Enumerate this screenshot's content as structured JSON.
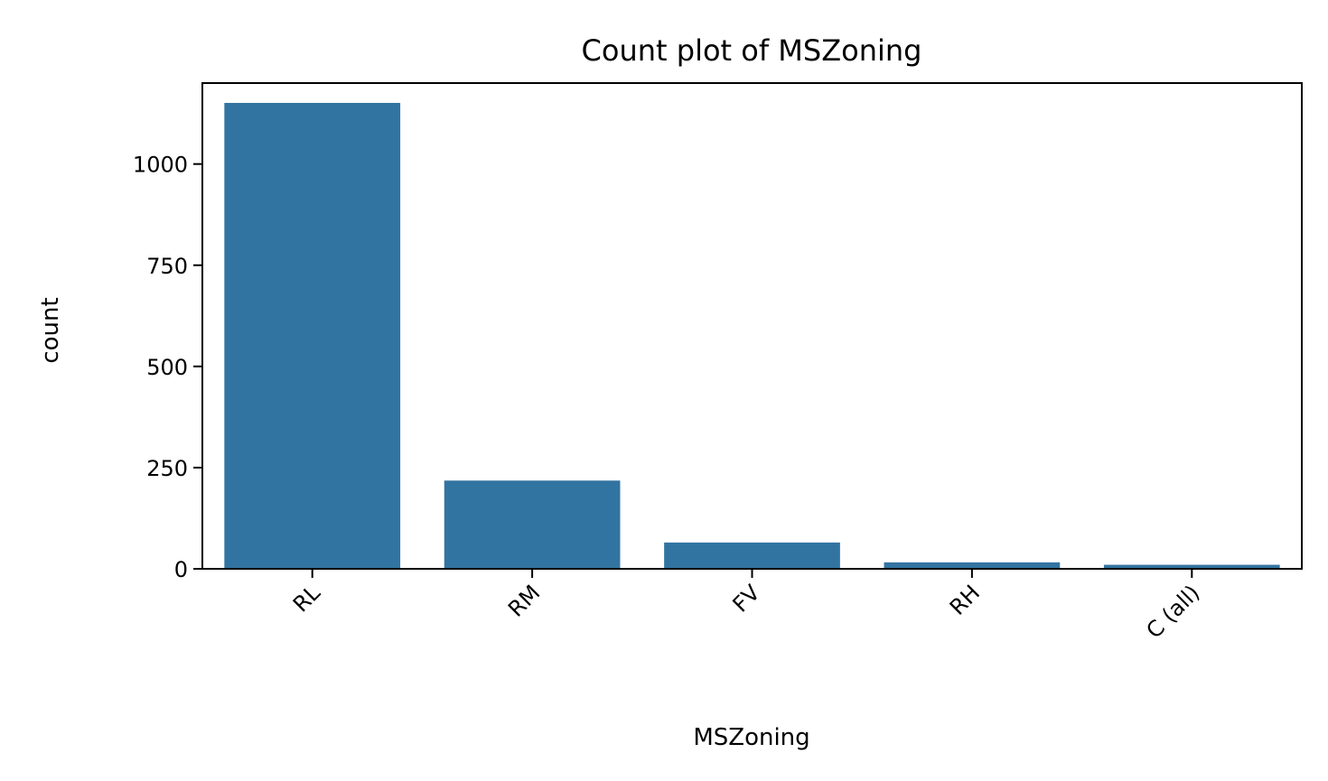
{
  "chart_data": {
    "type": "bar",
    "title": "Count plot of MSZoning",
    "xlabel": "MSZoning",
    "ylabel": "count",
    "categories": [
      "RL",
      "RM",
      "FV",
      "RH",
      "C (all)"
    ],
    "values": [
      1151,
      218,
      65,
      16,
      10
    ],
    "ylim": [
      0,
      1200
    ],
    "yticks": [
      0,
      250,
      500,
      750,
      1000
    ],
    "ytick_labels": [
      "0",
      "250",
      "500",
      "750",
      "1000"
    ],
    "bar_color": "#3274a1",
    "grid": false,
    "legend": "none",
    "x_tick_rotation": "45"
  }
}
